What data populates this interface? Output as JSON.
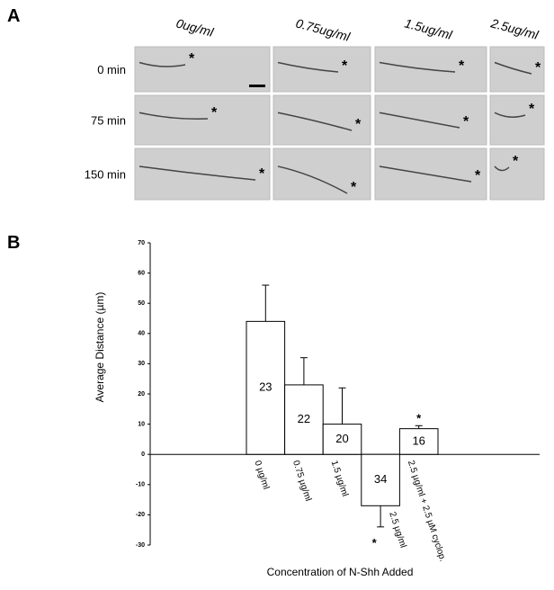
{
  "panel_a": {
    "label": "A",
    "columns": [
      "0ug/ml",
      "0.75ug/ml",
      "1.5ug/ml",
      "2.5ug/ml"
    ],
    "rows": [
      "0 min",
      "75 min",
      "150 min"
    ],
    "marker": "*"
  },
  "panel_b": {
    "label": "B"
  },
  "chart_data": {
    "type": "bar",
    "categories": [
      "0 µg/ml",
      "0.75 µg/ml",
      "1.5 µg/ml",
      "2.5 µg/ml",
      "2.5 µg/ml + 2.5 µM cyclop."
    ],
    "values": [
      44,
      23,
      10,
      -17,
      8.5
    ],
    "errors": [
      12,
      9,
      12,
      7,
      1
    ],
    "n_labels": [
      "23",
      "22",
      "20",
      "34",
      "16"
    ],
    "annotations": [
      {
        "index": 3,
        "text": "*"
      },
      {
        "index": 4,
        "text": "*"
      }
    ],
    "y_label": "Average Distance (µm)",
    "x_label": "Concentration of N-Shh Added",
    "ylim": [
      -30,
      70
    ],
    "yticks": [
      -30,
      -20,
      -10,
      0,
      10,
      20,
      30,
      40,
      50,
      60,
      70
    ],
    "color": "#ffffff"
  }
}
